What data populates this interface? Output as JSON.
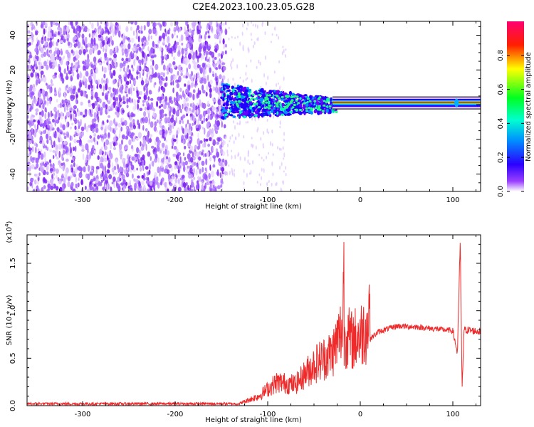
{
  "figure": {
    "title": "C2E4.2023.100.23.05.G28"
  },
  "chart_data": [
    {
      "type": "heatmap",
      "xlabel": "Height of straight line (km)",
      "ylabel": "Frequency (Hz)",
      "xlim": [
        -360,
        130
      ],
      "ylim": [
        -50,
        48
      ],
      "xticks": [
        -300,
        -200,
        -100,
        0,
        100
      ],
      "yticks": [
        -40,
        -20,
        0,
        20,
        40
      ],
      "colorbar": {
        "label": "Normalized spectral amplitude",
        "range": [
          0.0,
          1.0
        ],
        "ticks": [
          "0.0",
          "0.2",
          "0.4",
          "0.6",
          "0.8"
        ],
        "colormap": [
          "#ffffff",
          "#7a00ff",
          "#0000ff",
          "#00e5ff",
          "#00ff00",
          "#ffff00",
          "#ff0000",
          "#ff0066"
        ]
      },
      "regions": [
        {
          "description_x": [
            -360,
            -150
          ],
          "freq_range": [
            -50,
            48
          ],
          "level": 0.1
        },
        {
          "description_x": [
            -150,
            -30
          ],
          "freq_range": [
            -15,
            10
          ],
          "level": 0.35
        },
        {
          "description_x": [
            -30,
            130
          ],
          "freq_center": 1.5,
          "freq_halfwidth": 3,
          "level": 0.9
        }
      ],
      "grid": false
    },
    {
      "type": "line",
      "xlabel": "Height of straight line (km)",
      "ylabel": "SNR (10 * v/v)",
      "yscale_label": "(x10",
      "yscale_exp": "4",
      "yscale_close": ")",
      "xlim": [
        -360,
        130
      ],
      "ylim": [
        0.0,
        1.8
      ],
      "xticks": [
        -300,
        -200,
        -100,
        0,
        100
      ],
      "yticks": [
        "0.0",
        "0.5",
        "1.0",
        "1.5"
      ],
      "series": [
        {
          "color": "#ee2a2a",
          "key_points": [
            [
              -360,
              0.02
            ],
            [
              -130,
              0.02
            ],
            [
              -110,
              0.08
            ],
            [
              -90,
              0.2
            ],
            [
              -70,
              0.18
            ],
            [
              -50,
              0.35
            ],
            [
              -30,
              0.45
            ],
            [
              -20,
              0.65
            ],
            [
              -10,
              0.55
            ],
            [
              0,
              0.6
            ],
            [
              10,
              0.7
            ],
            [
              20,
              0.78
            ],
            [
              40,
              0.84
            ],
            [
              60,
              0.83
            ],
            [
              80,
              0.81
            ],
            [
              100,
              0.79
            ],
            [
              105,
              0.55
            ],
            [
              108,
              1.75
            ],
            [
              110,
              0.15
            ],
            [
              112,
              0.8
            ],
            [
              130,
              0.78
            ]
          ]
        }
      ],
      "grid": false
    }
  ]
}
